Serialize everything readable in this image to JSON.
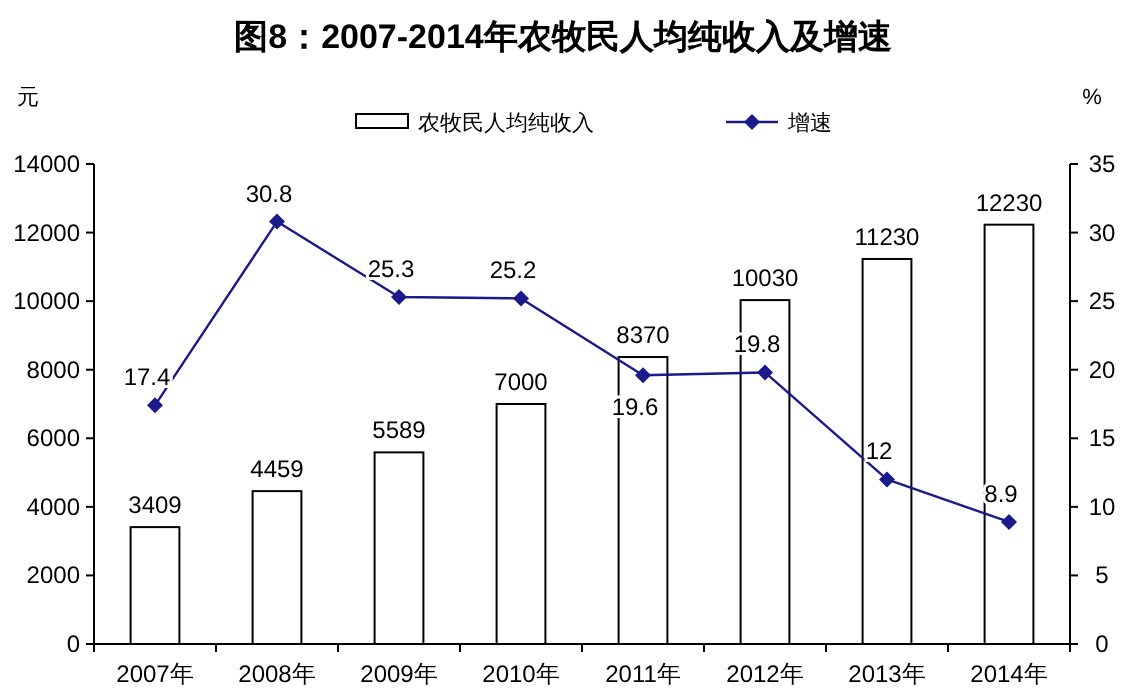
{
  "chart_data": {
    "type": "bar",
    "title": "图8：2007-2014年农牧民人均纯收入及增速",
    "ylabel": "元",
    "y2label": "%",
    "categories": [
      "2007年",
      "2008年",
      "2009年",
      "2010年",
      "2011年",
      "2012年",
      "2013年",
      "2014年"
    ],
    "series": [
      {
        "name": "农牧民人均纯收入",
        "color": "#ffffff",
        "values": [
          3409,
          4459,
          5589,
          7000,
          8370,
          10030,
          11230,
          12230
        ]
      },
      {
        "name": "增速",
        "type": "line",
        "axis": "y2",
        "color": "#1a1a8a",
        "marker": "diamond",
        "values": [
          17.4,
          30.8,
          25.3,
          25.2,
          19.6,
          19.8,
          12,
          8.9
        ]
      }
    ],
    "ylim": [
      0,
      14000
    ],
    "yticks": [
      0,
      2000,
      4000,
      6000,
      8000,
      10000,
      12000,
      14000
    ],
    "y2lim": [
      0,
      35
    ],
    "y2ticks": [
      0,
      5,
      10,
      15,
      20,
      25,
      30,
      35
    ],
    "data_labels": true,
    "legend": "top"
  }
}
